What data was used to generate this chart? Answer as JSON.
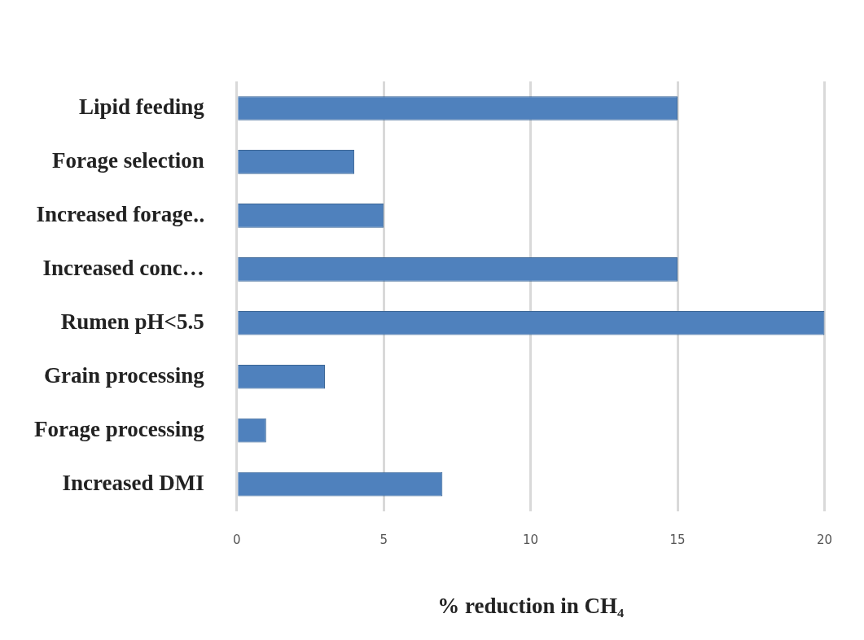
{
  "chart_data": {
    "type": "bar",
    "orientation": "horizontal",
    "categories": [
      "Lipid feeding",
      "Forage selection",
      "Increased forage‥",
      "Increased conc…",
      "Rumen pH<5.5",
      "Grain processing",
      "Forage processing",
      "Increased DMI"
    ],
    "values": [
      15,
      4,
      5,
      15,
      20,
      3,
      1,
      7
    ],
    "color": "#4f81bd",
    "xlim": [
      0,
      20
    ],
    "xticks": [
      0,
      5,
      10,
      15,
      20
    ],
    "xlabel": "% reduction in CH₄",
    "grid": "x"
  }
}
